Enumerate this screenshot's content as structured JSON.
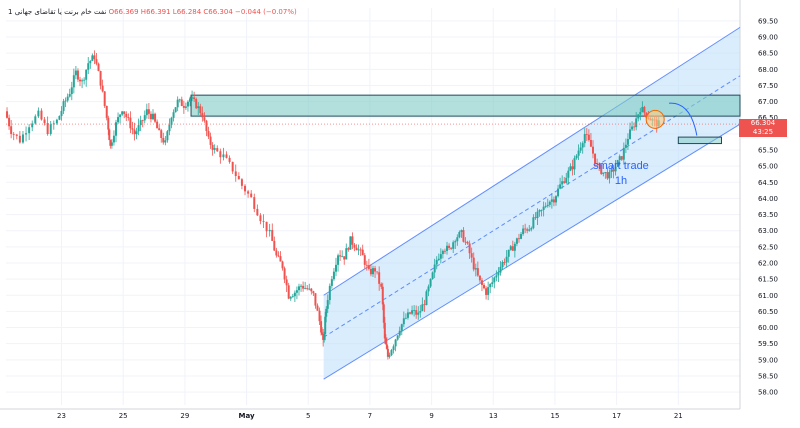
{
  "header": {
    "symbol": "1 نفت خام برنت یا تقاضای جهانی",
    "ohlc": "O66.369 H66.391 L66.284 C66.304 −0.044 (−0.07%)"
  },
  "price_tags": {
    "last_price": "66.304",
    "countdown": "43:25",
    "last_color": "#ef5350",
    "countdown_color": "#ef5350"
  },
  "annotation": {
    "line1": "smart trade",
    "line2": "1h",
    "color": "#2962ff"
  },
  "colors": {
    "up": "#26a69a",
    "down": "#ef5350",
    "channel_fill": "#bbdefb",
    "channel_line": "#2962ff",
    "zone_fill": "#80cbc4",
    "zone_border": "#1f4a5a"
  },
  "chart_data": {
    "type": "candlestick",
    "timeframe": "1h",
    "y_axis": {
      "range": [
        57.6,
        69.9
      ],
      "ticks": [
        "58.00",
        "58.50",
        "59.00",
        "59.50",
        "60.00",
        "60.50",
        "61.00",
        "61.50",
        "62.00",
        "62.50",
        "63.00",
        "63.50",
        "64.00",
        "64.50",
        "65.00",
        "65.50",
        "66.00",
        "66.50",
        "67.00",
        "67.50",
        "68.00",
        "68.50",
        "69.00",
        "69.50"
      ]
    },
    "x_axis": {
      "ticks": [
        {
          "label": "23",
          "day": 23
        },
        {
          "label": "25",
          "day": 25
        },
        {
          "label": "29",
          "day": 27
        },
        {
          "label": "May",
          "day": 29
        },
        {
          "label": "5",
          "day": 31
        },
        {
          "label": "7",
          "day": 33
        },
        {
          "label": "9",
          "day": 35
        },
        {
          "label": "13",
          "day": 37
        },
        {
          "label": "15",
          "day": 39
        },
        {
          "label": "17",
          "day": 41
        },
        {
          "label": "21",
          "day": 43
        }
      ],
      "range": [
        21.2,
        45.0
      ]
    },
    "price_path": [
      [
        21.2,
        66.7
      ],
      [
        21.4,
        66.1
      ],
      [
        21.7,
        65.8
      ],
      [
        22.0,
        66.3
      ],
      [
        22.3,
        66.6
      ],
      [
        22.6,
        66.1
      ],
      [
        22.9,
        66.4
      ],
      [
        23.1,
        66.9
      ],
      [
        23.3,
        67.3
      ],
      [
        23.5,
        67.9
      ],
      [
        23.7,
        67.6
      ],
      [
        23.9,
        68.2
      ],
      [
        24.1,
        68.4
      ],
      [
        24.3,
        67.6
      ],
      [
        24.5,
        66.5
      ],
      [
        24.6,
        65.6
      ],
      [
        24.8,
        66.3
      ],
      [
        25.0,
        66.8
      ],
      [
        25.2,
        66.4
      ],
      [
        25.4,
        66.0
      ],
      [
        25.6,
        66.3
      ],
      [
        25.8,
        66.7
      ],
      [
        26.0,
        66.5
      ],
      [
        26.2,
        66.0
      ],
      [
        26.4,
        65.7
      ],
      [
        26.6,
        66.6
      ],
      [
        26.8,
        67.0
      ],
      [
        27.0,
        66.9
      ],
      [
        27.2,
        67.1
      ],
      [
        27.4,
        66.9
      ],
      [
        27.6,
        66.6
      ],
      [
        27.8,
        65.8
      ],
      [
        28.0,
        65.5
      ],
      [
        28.3,
        65.3
      ],
      [
        28.6,
        64.9
      ],
      [
        28.9,
        64.4
      ],
      [
        29.2,
        64.0
      ],
      [
        29.5,
        63.4
      ],
      [
        29.8,
        62.9
      ],
      [
        30.0,
        62.2
      ],
      [
        30.2,
        61.9
      ],
      [
        30.4,
        61.0
      ],
      [
        30.6,
        61.1
      ],
      [
        30.8,
        61.3
      ],
      [
        31.0,
        61.2
      ],
      [
        31.2,
        61.0
      ],
      [
        31.4,
        60.2
      ],
      [
        31.5,
        59.5
      ],
      [
        31.6,
        60.6
      ],
      [
        31.8,
        61.6
      ],
      [
        32.0,
        62.3
      ],
      [
        32.2,
        62.2
      ],
      [
        32.4,
        62.7
      ],
      [
        32.6,
        62.5
      ],
      [
        32.8,
        62.2
      ],
      [
        33.0,
        61.7
      ],
      [
        33.2,
        61.8
      ],
      [
        33.4,
        61.2
      ],
      [
        33.5,
        59.6
      ],
      [
        33.6,
        59.1
      ],
      [
        33.8,
        59.5
      ],
      [
        34.0,
        60.0
      ],
      [
        34.2,
        60.3
      ],
      [
        34.4,
        60.5
      ],
      [
        34.6,
        60.4
      ],
      [
        34.8,
        60.8
      ],
      [
        35.0,
        61.4
      ],
      [
        35.2,
        62.1
      ],
      [
        35.4,
        62.5
      ],
      [
        35.6,
        62.4
      ],
      [
        35.8,
        62.8
      ],
      [
        36.0,
        62.9
      ],
      [
        36.2,
        62.5
      ],
      [
        36.4,
        61.9
      ],
      [
        36.6,
        61.4
      ],
      [
        36.8,
        61.1
      ],
      [
        37.0,
        61.4
      ],
      [
        37.2,
        61.8
      ],
      [
        37.4,
        62.1
      ],
      [
        37.6,
        62.4
      ],
      [
        37.8,
        62.7
      ],
      [
        38.0,
        63.0
      ],
      [
        38.2,
        63.1
      ],
      [
        38.4,
        63.4
      ],
      [
        38.6,
        63.6
      ],
      [
        38.8,
        63.9
      ],
      [
        39.0,
        64.0
      ],
      [
        39.2,
        64.4
      ],
      [
        39.4,
        64.7
      ],
      [
        39.6,
        65.0
      ],
      [
        39.8,
        65.5
      ],
      [
        40.0,
        66.0
      ],
      [
        40.2,
        65.6
      ],
      [
        40.4,
        65.0
      ],
      [
        40.6,
        64.8
      ],
      [
        40.8,
        64.7
      ],
      [
        41.0,
        65.0
      ],
      [
        41.2,
        65.3
      ],
      [
        41.4,
        65.9
      ],
      [
        41.6,
        66.3
      ],
      [
        41.8,
        66.8
      ],
      [
        42.0,
        66.6
      ],
      [
        42.2,
        66.4
      ],
      [
        42.4,
        66.3
      ]
    ],
    "resistance_zone": {
      "y": [
        66.55,
        67.2
      ],
      "x": [
        27.2,
        45.0
      ]
    },
    "support_box": {
      "y": [
        65.7,
        65.9
      ],
      "x": [
        43.0,
        44.4
      ]
    },
    "channel": {
      "start": {
        "x": 31.5,
        "lower": 58.4,
        "upper": 61.0
      },
      "end": {
        "x": 45.0,
        "lower": 66.3,
        "upper": 69.3
      }
    },
    "last_price": 66.304
  }
}
